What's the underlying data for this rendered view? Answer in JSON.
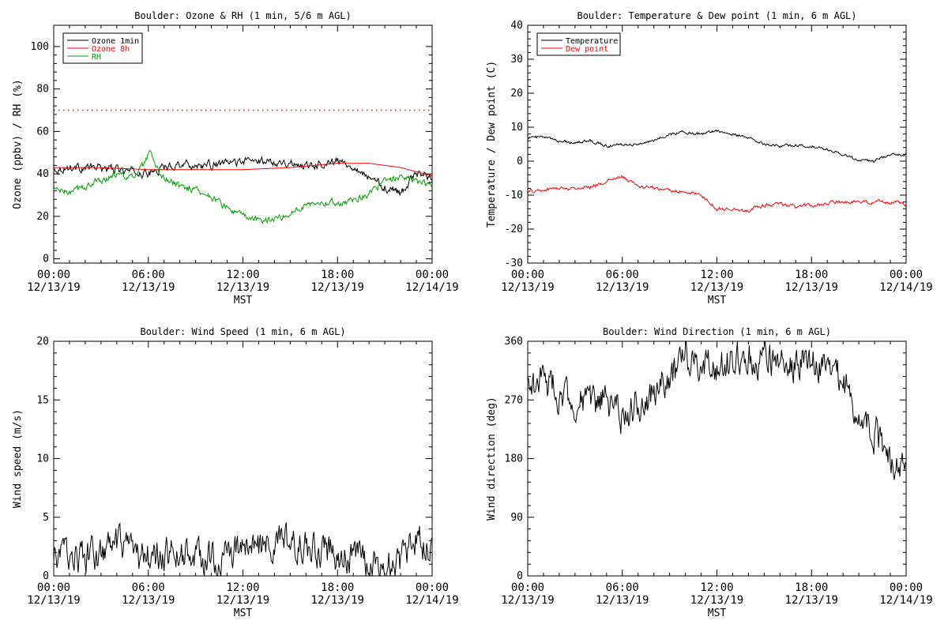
{
  "chart_data": [
    {
      "type": "line",
      "title": "Boulder: Ozone & RH (1 min, 5/6 m AGL)",
      "xlabel": "MST",
      "ylabel": "Ozone (ppbv) / RH (%)",
      "x_ticks": [
        {
          "time": "00:00",
          "date": "12/13/19"
        },
        {
          "time": "06:00",
          "date": "12/13/19"
        },
        {
          "time": "12:00",
          "date": "12/13/19"
        },
        {
          "time": "18:00",
          "date": "12/13/19"
        },
        {
          "time": "00:00",
          "date": "12/14/19"
        }
      ],
      "xlim": [
        0,
        24
      ],
      "ylim": [
        -2,
        110
      ],
      "yticks": [
        0,
        20,
        40,
        60,
        80,
        100
      ],
      "grid": false,
      "legend_position": "top-left",
      "reference_line": {
        "y": 70,
        "color": "#ff0000",
        "style": "dotted"
      },
      "series": [
        {
          "name": "Ozone 1min",
          "color": "#000000",
          "noise": 1.6,
          "points": [
            [
              0,
              42
            ],
            [
              1,
              43
            ],
            [
              2,
              43
            ],
            [
              3,
              43
            ],
            [
              4,
              42
            ],
            [
              5,
              41
            ],
            [
              6,
              40
            ],
            [
              7,
              43
            ],
            [
              8,
              45
            ],
            [
              9,
              44
            ],
            [
              10,
              44
            ],
            [
              11,
              45
            ],
            [
              12,
              46
            ],
            [
              13,
              46
            ],
            [
              14,
              46
            ],
            [
              15,
              45
            ],
            [
              16,
              44
            ],
            [
              17,
              45
            ],
            [
              18,
              46
            ],
            [
              19,
              44
            ],
            [
              20,
              38
            ],
            [
              21,
              34
            ],
            [
              22,
              31
            ],
            [
              22.5,
              36
            ],
            [
              23,
              40
            ],
            [
              24,
              39
            ]
          ]
        },
        {
          "name": "Ozone 8h",
          "color": "#ff0000",
          "noise": 0,
          "points": [
            [
              0,
              43
            ],
            [
              3,
              43
            ],
            [
              6,
              42
            ],
            [
              9,
              42
            ],
            [
              12,
              42
            ],
            [
              15,
              43
            ],
            [
              18,
              45
            ],
            [
              20,
              45
            ],
            [
              22,
              43
            ],
            [
              24,
              39
            ]
          ]
        },
        {
          "name": "RH",
          "color": "#00a000",
          "noise": 1.3,
          "points": [
            [
              0,
              33
            ],
            [
              1,
              31
            ],
            [
              2,
              34
            ],
            [
              3,
              37
            ],
            [
              4,
              40
            ],
            [
              5,
              38
            ],
            [
              5.8,
              45
            ],
            [
              6.1,
              50
            ],
            [
              6.5,
              42
            ],
            [
              7,
              38
            ],
            [
              8,
              34
            ],
            [
              9,
              33
            ],
            [
              10,
              29
            ],
            [
              11,
              24
            ],
            [
              12,
              20
            ],
            [
              13,
              18
            ],
            [
              14,
              19
            ],
            [
              15,
              21
            ],
            [
              16,
              26
            ],
            [
              17,
              27
            ],
            [
              18,
              26
            ],
            [
              19,
              28
            ],
            [
              20,
              31
            ],
            [
              21,
              36
            ],
            [
              22,
              39
            ],
            [
              23,
              36
            ],
            [
              24,
              35
            ]
          ]
        }
      ]
    },
    {
      "type": "line",
      "title": "Boulder: Temperature & Dew point (1 min, 6 m AGL)",
      "xlabel": "MST",
      "ylabel": "Temperature / Dew point (C)",
      "x_ticks": [
        {
          "time": "00:00",
          "date": "12/13/19"
        },
        {
          "time": "06:00",
          "date": "12/13/19"
        },
        {
          "time": "12:00",
          "date": "12/13/19"
        },
        {
          "time": "18:00",
          "date": "12/13/19"
        },
        {
          "time": "00:00",
          "date": "12/14/19"
        }
      ],
      "xlim": [
        0,
        24
      ],
      "ylim": [
        -30,
        40
      ],
      "yticks": [
        -30,
        -20,
        -10,
        0,
        10,
        20,
        30,
        40
      ],
      "grid": false,
      "legend_position": "top-left",
      "series": [
        {
          "name": "Temperature",
          "color": "#000000",
          "noise": 0.35,
          "points": [
            [
              0,
              7
            ],
            [
              1,
              7
            ],
            [
              2,
              6
            ],
            [
              3,
              5.5
            ],
            [
              4,
              6
            ],
            [
              5,
              4.5
            ],
            [
              6,
              5
            ],
            [
              7,
              5
            ],
            [
              8,
              6
            ],
            [
              9,
              8
            ],
            [
              10,
              8.5
            ],
            [
              11,
              8
            ],
            [
              12,
              9
            ],
            [
              13,
              8
            ],
            [
              14,
              7
            ],
            [
              15,
              5
            ],
            [
              16,
              4.5
            ],
            [
              17,
              4.5
            ],
            [
              18,
              4.5
            ],
            [
              19,
              3.5
            ],
            [
              20,
              2
            ],
            [
              21,
              0.5
            ],
            [
              22,
              0
            ],
            [
              23,
              2
            ],
            [
              24,
              2
            ]
          ]
        },
        {
          "name": "Dew point",
          "color": "#ff0000",
          "noise": 0.45,
          "points": [
            [
              0,
              -9
            ],
            [
              1,
              -8.5
            ],
            [
              2,
              -8
            ],
            [
              3,
              -8
            ],
            [
              4,
              -7.5
            ],
            [
              5,
              -6
            ],
            [
              6,
              -4.5
            ],
            [
              7,
              -7.5
            ],
            [
              8,
              -8
            ],
            [
              9,
              -8.5
            ],
            [
              10,
              -9
            ],
            [
              11,
              -10
            ],
            [
              12,
              -14
            ],
            [
              13,
              -14
            ],
            [
              14,
              -14.5
            ],
            [
              15,
              -13
            ],
            [
              16,
              -12.5
            ],
            [
              17,
              -13.5
            ],
            [
              18,
              -13
            ],
            [
              19,
              -12.5
            ],
            [
              20,
              -12
            ],
            [
              21,
              -12
            ],
            [
              22,
              -12
            ],
            [
              23,
              -12
            ],
            [
              24,
              -12.5
            ]
          ]
        }
      ]
    },
    {
      "type": "line",
      "title": "Boulder: Wind Speed (1 min, 6 m AGL)",
      "xlabel": "MST",
      "ylabel": "Wind speed (m/s)",
      "x_ticks": [
        {
          "time": "00:00",
          "date": "12/13/19"
        },
        {
          "time": "06:00",
          "date": "12/13/19"
        },
        {
          "time": "12:00",
          "date": "12/13/19"
        },
        {
          "time": "18:00",
          "date": "12/13/19"
        },
        {
          "time": "00:00",
          "date": "12/14/19"
        }
      ],
      "xlim": [
        0,
        24
      ],
      "ylim": [
        0,
        20
      ],
      "yticks": [
        0,
        5,
        10,
        15,
        20
      ],
      "grid": false,
      "series": [
        {
          "name": "",
          "color": "#000000",
          "noise": 1.2,
          "floor": 0,
          "points": [
            [
              0,
              1.5
            ],
            [
              1,
              2
            ],
            [
              2,
              1.5
            ],
            [
              3,
              1.8
            ],
            [
              4,
              2.5
            ],
            [
              5,
              1.5
            ],
            [
              6,
              1.5
            ],
            [
              7,
              1.8
            ],
            [
              8,
              2
            ],
            [
              9,
              1.5
            ],
            [
              10,
              1.5
            ],
            [
              11,
              1.5
            ],
            [
              12,
              2.5
            ],
            [
              13,
              2.5
            ],
            [
              14,
              2.5
            ],
            [
              15,
              2.8
            ],
            [
              16,
              2.5
            ],
            [
              17,
              2
            ],
            [
              18,
              1.8
            ],
            [
              19,
              1.5
            ],
            [
              20,
              1
            ],
            [
              21,
              1
            ],
            [
              22,
              1.2
            ],
            [
              23,
              3
            ],
            [
              24,
              2.5
            ]
          ]
        }
      ]
    },
    {
      "type": "line",
      "title": "Boulder: Wind Direction (1 min, 6 m AGL)",
      "xlabel": "MST",
      "ylabel": "Wind direction (deg)",
      "x_ticks": [
        {
          "time": "00:00",
          "date": "12/13/19"
        },
        {
          "time": "06:00",
          "date": "12/13/19"
        },
        {
          "time": "12:00",
          "date": "12/13/19"
        },
        {
          "time": "18:00",
          "date": "12/13/19"
        },
        {
          "time": "00:00",
          "date": "12/14/19"
        }
      ],
      "xlim": [
        0,
        24
      ],
      "ylim": [
        0,
        360
      ],
      "yticks": [
        0,
        90,
        180,
        270,
        360
      ],
      "grid": false,
      "series": [
        {
          "name": "",
          "color": "#000000",
          "noise": 22,
          "floor": 0,
          "ceil": 360,
          "points": [
            [
              0,
              290
            ],
            [
              1,
              300
            ],
            [
              2,
              280
            ],
            [
              3,
              270
            ],
            [
              4,
              260
            ],
            [
              5,
              270
            ],
            [
              6,
              240
            ],
            [
              7,
              265
            ],
            [
              8,
              280
            ],
            [
              9,
              300
            ],
            [
              10,
              330
            ],
            [
              11,
              335
            ],
            [
              12,
              320
            ],
            [
              13,
              330
            ],
            [
              14,
              330
            ],
            [
              15,
              340
            ],
            [
              16,
              320
            ],
            [
              17,
              330
            ],
            [
              18,
              330
            ],
            [
              19,
              320
            ],
            [
              20,
              300
            ],
            [
              21,
              250
            ],
            [
              22,
              220
            ],
            [
              23,
              180
            ],
            [
              24,
              180
            ]
          ]
        }
      ]
    }
  ]
}
